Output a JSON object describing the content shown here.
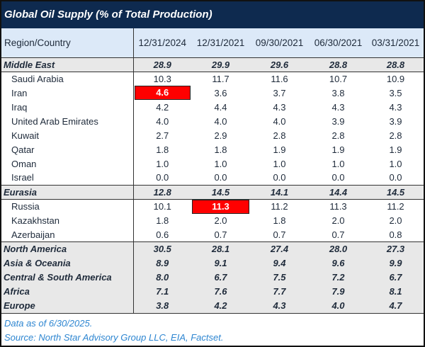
{
  "chart_data": {
    "type": "table",
    "title": "Global Oil Supply (% of Total Production)",
    "columns": [
      "Region/Country",
      "12/31/2024",
      "12/31/2021",
      "09/30/2021",
      "06/30/2021",
      "03/31/2021"
    ],
    "rows": [
      {
        "label": "Middle East",
        "kind": "region",
        "values": [
          "28.9",
          "29.9",
          "29.6",
          "28.8",
          "28.8"
        ]
      },
      {
        "label": "Saudi Arabia",
        "kind": "country",
        "values": [
          "10.3",
          "11.7",
          "11.6",
          "10.7",
          "10.9"
        ]
      },
      {
        "label": "Iran",
        "kind": "country",
        "values": [
          "4.6",
          "3.6",
          "3.7",
          "3.8",
          "3.5"
        ],
        "highlight": 0
      },
      {
        "label": "Iraq",
        "kind": "country",
        "values": [
          "4.2",
          "4.4",
          "4.3",
          "4.3",
          "4.3"
        ]
      },
      {
        "label": "United Arab Emirates",
        "kind": "country",
        "values": [
          "4.0",
          "4.0",
          "4.0",
          "3.9",
          "3.9"
        ]
      },
      {
        "label": "Kuwait",
        "kind": "country",
        "values": [
          "2.7",
          "2.9",
          "2.8",
          "2.8",
          "2.8"
        ]
      },
      {
        "label": "Qatar",
        "kind": "country",
        "values": [
          "1.8",
          "1.8",
          "1.9",
          "1.9",
          "1.9"
        ]
      },
      {
        "label": "Oman",
        "kind": "country",
        "values": [
          "1.0",
          "1.0",
          "1.0",
          "1.0",
          "1.0"
        ]
      },
      {
        "label": "Israel",
        "kind": "country",
        "values": [
          "0.0",
          "0.0",
          "0.0",
          "0.0",
          "0.0"
        ]
      },
      {
        "label": "Eurasia",
        "kind": "region",
        "values": [
          "12.8",
          "14.5",
          "14.1",
          "14.4",
          "14.5"
        ]
      },
      {
        "label": "Russia",
        "kind": "country",
        "values": [
          "10.1",
          "11.3",
          "11.2",
          "11.3",
          "11.2"
        ],
        "highlight": 1
      },
      {
        "label": "Kazakhstan",
        "kind": "country",
        "values": [
          "1.8",
          "2.0",
          "1.8",
          "2.0",
          "2.0"
        ]
      },
      {
        "label": "Azerbaijan",
        "kind": "country",
        "values": [
          "0.6",
          "0.7",
          "0.7",
          "0.7",
          "0.8"
        ]
      },
      {
        "label": "North America",
        "kind": "region",
        "values": [
          "30.5",
          "28.1",
          "27.4",
          "28.0",
          "27.3"
        ]
      },
      {
        "label": "Asia & Oceania",
        "kind": "region",
        "values": [
          "8.9",
          "9.1",
          "9.4",
          "9.6",
          "9.9"
        ]
      },
      {
        "label": "Central & South America",
        "kind": "region",
        "values": [
          "8.0",
          "6.7",
          "7.5",
          "7.2",
          "6.7"
        ]
      },
      {
        "label": "Africa",
        "kind": "region",
        "values": [
          "7.1",
          "7.6",
          "7.7",
          "7.9",
          "8.1"
        ]
      },
      {
        "label": "Europe",
        "kind": "region",
        "values": [
          "3.8",
          "4.2",
          "4.3",
          "4.0",
          "4.7"
        ]
      }
    ],
    "colors": {
      "title_bg": "#0e2a4f",
      "header_bg": "#dce9f8",
      "region_bg": "#e8e8e8",
      "highlight": "#ff0000",
      "footnote": "#2e86d1"
    }
  },
  "footer": {
    "note": "Data as of 6/30/2025.",
    "source": "Source: North Star Advisory Group LLC, EIA, Factset."
  }
}
